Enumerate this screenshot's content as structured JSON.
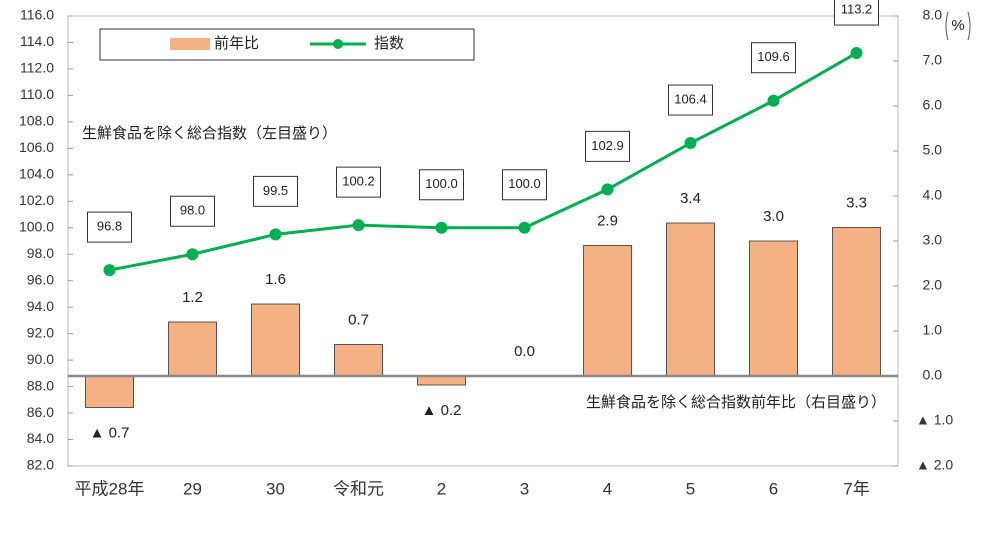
{
  "chart_data": {
    "type": "combo",
    "categories": [
      "平成28年",
      "29",
      "30",
      "令和元",
      "2",
      "3",
      "4",
      "5",
      "6",
      "7年"
    ],
    "series": [
      {
        "name": "前年比",
        "type": "bar",
        "axis": "y2",
        "color": "#f4b183",
        "values": [
          -0.7,
          1.2,
          1.6,
          0.7,
          -0.2,
          0.0,
          2.9,
          3.4,
          3.0,
          3.3
        ],
        "value_labels": [
          "▲ 0.7",
          "1.2",
          "1.6",
          "0.7",
          "▲ 0.2",
          "0.0",
          "2.9",
          "3.4",
          "3.0",
          "3.3"
        ]
      },
      {
        "name": "指数",
        "type": "line",
        "axis": "y",
        "color": "#00b050",
        "values": [
          96.8,
          98.0,
          99.5,
          100.2,
          100.0,
          100.0,
          102.9,
          106.4,
          109.6,
          113.2
        ],
        "value_labels": [
          "96.8",
          "98.0",
          "99.5",
          "100.2",
          "100.0",
          "100.0",
          "102.9",
          "106.4",
          "109.6",
          "113.2"
        ]
      }
    ],
    "ylim": [
      82,
      116
    ],
    "yticks": [
      {
        "value": 82,
        "label": "82.0"
      },
      {
        "value": 84,
        "label": "84.0"
      },
      {
        "value": 86,
        "label": "86.0"
      },
      {
        "value": 88,
        "label": "88.0"
      },
      {
        "value": 90,
        "label": "90.0"
      },
      {
        "value": 92,
        "label": "92.0"
      },
      {
        "value": 94,
        "label": "94.0"
      },
      {
        "value": 96,
        "label": "96.0"
      },
      {
        "value": 98,
        "label": "98.0"
      },
      {
        "value": 100,
        "label": "100.0"
      },
      {
        "value": 102,
        "label": "102.0"
      },
      {
        "value": 104,
        "label": "104.0"
      },
      {
        "value": 106,
        "label": "106.0"
      },
      {
        "value": 108,
        "label": "108.0"
      },
      {
        "value": 110,
        "label": "110.0"
      },
      {
        "value": 112,
        "label": "112.0"
      },
      {
        "value": 114,
        "label": "114.0"
      },
      {
        "value": 116,
        "label": "116.0"
      }
    ],
    "y2lim": [
      -2,
      8
    ],
    "y2ticks": [
      {
        "value": -2,
        "label": "▲ 2.0"
      },
      {
        "value": -1,
        "label": "▲ 1.0"
      },
      {
        "value": 0,
        "label": "0.0"
      },
      {
        "value": 1,
        "label": "1.0"
      },
      {
        "value": 2,
        "label": "2.0"
      },
      {
        "value": 3,
        "label": "3.0"
      },
      {
        "value": 4,
        "label": "4.0"
      },
      {
        "value": 5,
        "label": "5.0"
      },
      {
        "value": 6,
        "label": "6.0"
      },
      {
        "value": 7,
        "label": "7.0"
      },
      {
        "value": 8,
        "label": "8.0"
      }
    ],
    "y2_unit": "%",
    "annotations": [
      "生鮮食品を除く総合指数（左目盛り）",
      "生鮮食品を除く総合指数前年比（右目盛り）"
    ]
  }
}
